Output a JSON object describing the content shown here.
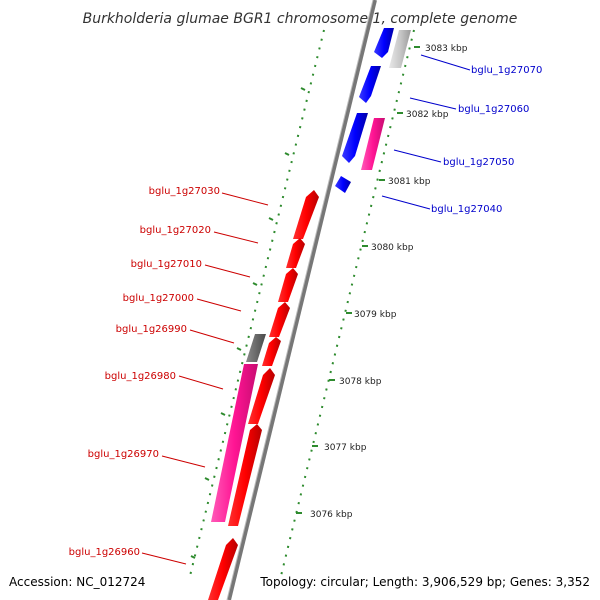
{
  "title": "Burkholderia glumae BGR1 chromosome 1, complete genome",
  "accession_label": "Accession: NC_012724",
  "topology_label": "Topology: circular; Length: 3,906,529 bp; Genes: 3,352",
  "colors": {
    "forward_label": "#0000cc",
    "reverse_label": "#cc0000",
    "cds_forward": "#0000ff",
    "cds_reverse": "#ff0000",
    "rna": "#ff1493",
    "other": "#c0c0c0",
    "pseudo": "#666666",
    "tick_green": "#2e8b2e",
    "backbone": "#808080"
  },
  "kbp_ticks": [
    "3083 kbp",
    "3082 kbp",
    "3081 kbp",
    "3080 kbp",
    "3079 kbp",
    "3078 kbp",
    "3077 kbp",
    "3076 kbp"
  ],
  "gene_labels_forward": [
    "bglu_1g27070",
    "bglu_1g27060",
    "bglu_1g27050",
    "bglu_1g27040"
  ],
  "gene_labels_reverse": [
    "bglu_1g27030",
    "bglu_1g27020",
    "bglu_1g27010",
    "bglu_1g27000",
    "bglu_1g26990",
    "bglu_1g26980",
    "bglu_1g26970",
    "bglu_1g26960"
  ]
}
